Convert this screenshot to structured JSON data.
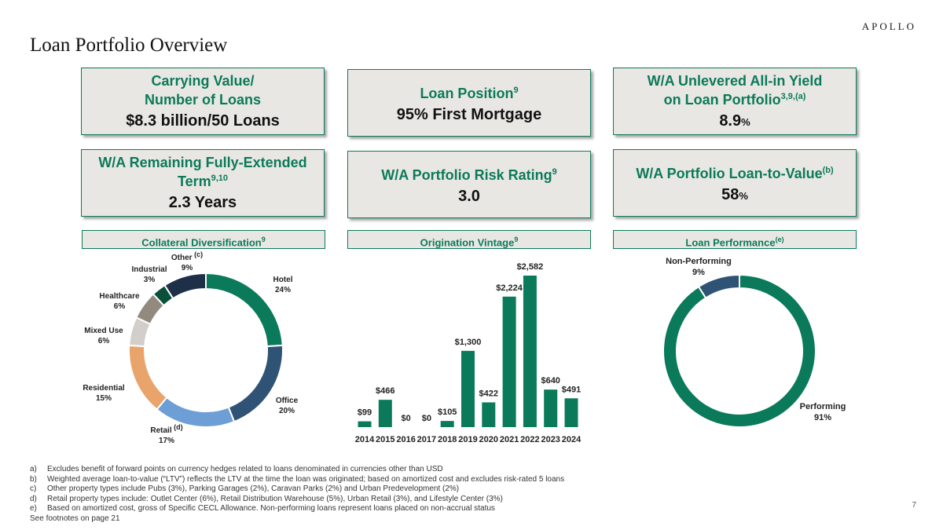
{
  "brand": "APOLLO",
  "title": "Loan Portfolio Overview",
  "kpis": [
    {
      "label": "Carrying Value/\nNumber of Loans",
      "sup": "",
      "value": "$8.3 billion/50 Loans",
      "suffix": ""
    },
    {
      "label": "Loan Position",
      "sup": "9",
      "value": "95% First Mortgage",
      "suffix": ""
    },
    {
      "label": "W/A Unlevered All-in Yield\non Loan Portfolio",
      "sup": "3,9,(a)",
      "value": "8.9",
      "suffix": "%"
    },
    {
      "label": "W/A Remaining Fully-Extended\nTerm",
      "sup": "9,10",
      "value": "2.3 Years",
      "suffix": ""
    },
    {
      "label": "W/A Portfolio Risk Rating",
      "sup": "9",
      "value": "3.0",
      "suffix": ""
    },
    {
      "label": "W/A Portfolio Loan-to-Value",
      "sup": "(b)",
      "value": "58",
      "suffix": "%"
    }
  ],
  "sections": {
    "collateral": {
      "label": "Collateral Diversification",
      "sup": "9"
    },
    "vintage": {
      "label": "Origination Vintage",
      "sup": "9"
    },
    "performance": {
      "label": "Loan Performance",
      "sup": "(e)"
    }
  },
  "chart_data": [
    {
      "type": "pie",
      "slices": [
        {
          "name": "Hotel",
          "value": 24,
          "label": "24%",
          "color": "#0b7a5a"
        },
        {
          "name": "Office",
          "value": 20,
          "label": "20%",
          "color": "#2f5375"
        },
        {
          "name": "Retail",
          "sup": "(d)",
          "value": 17,
          "label": "17%",
          "color": "#6d9ed6"
        },
        {
          "name": "Residential",
          "value": 15,
          "label": "15%",
          "color": "#e8a46a"
        },
        {
          "name": "Mixed Use",
          "value": 6,
          "label": "6%",
          "color": "#d2cfca"
        },
        {
          "name": "Healthcare",
          "value": 6,
          "label": "6%",
          "color": "#938a7f"
        },
        {
          "name": "Industrial",
          "value": 3,
          "label": "3%",
          "color": "#0a4f3a"
        },
        {
          "name": "Other",
          "sup": "(c)",
          "value": 9,
          "label": "9%",
          "color": "#1e3048"
        }
      ]
    },
    {
      "type": "bar",
      "categories": [
        "2014",
        "2015",
        "2016",
        "2017",
        "2018",
        "2019",
        "2020",
        "2021",
        "2022",
        "2023",
        "2024"
      ],
      "values": [
        99,
        466,
        0,
        0,
        105,
        1300,
        422,
        2224,
        2582,
        640,
        491
      ],
      "labels": [
        "$99",
        "$466",
        "$0",
        "$0",
        "$105",
        "$1,300",
        "$422",
        "$2,224",
        "$2,582",
        "$640",
        "$491"
      ],
      "color": "#0b7a5a",
      "ylim": [
        0,
        2582
      ]
    },
    {
      "type": "pie",
      "slices": [
        {
          "name": "Performing",
          "value": 91,
          "label": "91%",
          "color": "#0b7a5a"
        },
        {
          "name": "Non-Performing",
          "value": 9,
          "label": "9%",
          "color": "#2f5375"
        }
      ]
    }
  ],
  "footnotes": [
    {
      "letter": "a)",
      "text": "Excludes benefit of forward points on currency hedges related to loans denominated in currencies other than USD"
    },
    {
      "letter": "b)",
      "text": "Weighted average loan-to-value (“LTV”) reflects the LTV at the time the loan was originated; based on amortized cost and excludes risk-rated 5 loans"
    },
    {
      "letter": "c)",
      "text": "Other property types include Pubs (3%), Parking Garages (2%), Caravan Parks (2%) and Urban Predevelopment (2%)"
    },
    {
      "letter": "d)",
      "text": "Retail property types include: Outlet Center (6%), Retail Distribution Warehouse (5%), Urban Retail (3%), and Lifestyle Center (3%)"
    },
    {
      "letter": "e)",
      "text": "Based on amortized cost, gross of Specific CECL Allowance. Non-performing loans represent loans placed on non-accrual status"
    }
  ],
  "see_footnotes": "See footnotes on page 21",
  "page_number": "7"
}
